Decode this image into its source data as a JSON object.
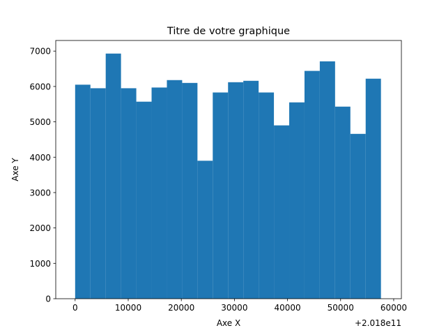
{
  "chart_data": {
    "type": "bar",
    "title": "Titre de votre graphique",
    "xlabel": "Axe X",
    "ylabel": "Axe Y",
    "x_offset_label": "+2.018e11",
    "xlim": [
      -3650,
      61450
    ],
    "ylim": [
      0,
      7300
    ],
    "grid": false,
    "bar_color": "#1f77b4",
    "bins": [
      {
        "start": 0,
        "end": 2880,
        "value": 6050
      },
      {
        "start": 2880,
        "end": 5760,
        "value": 5950
      },
      {
        "start": 5760,
        "end": 8640,
        "value": 6930
      },
      {
        "start": 8640,
        "end": 11520,
        "value": 5950
      },
      {
        "start": 11520,
        "end": 14400,
        "value": 5570
      },
      {
        "start": 14400,
        "end": 17280,
        "value": 5970
      },
      {
        "start": 17280,
        "end": 20160,
        "value": 6180
      },
      {
        "start": 20160,
        "end": 23040,
        "value": 6100
      },
      {
        "start": 23040,
        "end": 25920,
        "value": 3900
      },
      {
        "start": 25920,
        "end": 28800,
        "value": 5830
      },
      {
        "start": 28800,
        "end": 31680,
        "value": 6120
      },
      {
        "start": 31680,
        "end": 34560,
        "value": 6160
      },
      {
        "start": 34560,
        "end": 37440,
        "value": 5830
      },
      {
        "start": 37440,
        "end": 40320,
        "value": 4900
      },
      {
        "start": 40320,
        "end": 43200,
        "value": 5550
      },
      {
        "start": 43200,
        "end": 46080,
        "value": 6440
      },
      {
        "start": 46080,
        "end": 48960,
        "value": 6710
      },
      {
        "start": 48960,
        "end": 51840,
        "value": 5430
      },
      {
        "start": 51840,
        "end": 54720,
        "value": 4660
      },
      {
        "start": 54720,
        "end": 57600,
        "value": 6220
      }
    ],
    "x_ticks": [
      {
        "value": 0,
        "label": "0"
      },
      {
        "value": 10000,
        "label": "10000"
      },
      {
        "value": 20000,
        "label": "20000"
      },
      {
        "value": 30000,
        "label": "30000"
      },
      {
        "value": 40000,
        "label": "40000"
      },
      {
        "value": 50000,
        "label": "50000"
      },
      {
        "value": 60000,
        "label": "60000"
      }
    ],
    "y_ticks": [
      {
        "value": 0,
        "label": "0"
      },
      {
        "value": 1000,
        "label": "1000"
      },
      {
        "value": 2000,
        "label": "2000"
      },
      {
        "value": 3000,
        "label": "3000"
      },
      {
        "value": 4000,
        "label": "4000"
      },
      {
        "value": 5000,
        "label": "5000"
      },
      {
        "value": 6000,
        "label": "6000"
      },
      {
        "value": 7000,
        "label": "7000"
      }
    ]
  }
}
